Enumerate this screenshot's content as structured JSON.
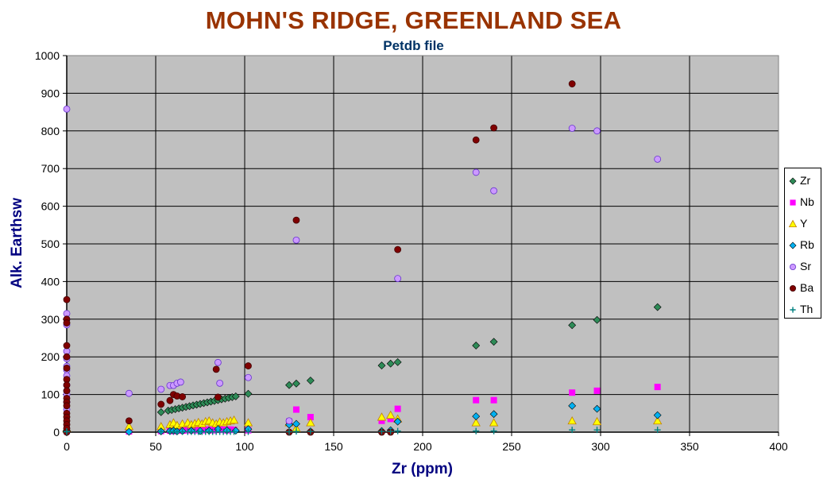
{
  "chart_data": {
    "type": "scatter",
    "title": "MOHN'S RIDGE,  GREENLAND SEA",
    "subtitle": "Petdb file",
    "xlabel": "Zr (ppm)",
    "ylabel": "Alk. Earthsw",
    "xlim": [
      0,
      400
    ],
    "ylim": [
      0,
      1000
    ],
    "xticks": [
      0,
      50,
      100,
      150,
      200,
      250,
      300,
      350,
      400
    ],
    "yticks": [
      0,
      100,
      200,
      300,
      400,
      500,
      600,
      700,
      800,
      900,
      1000
    ],
    "grid": true,
    "legend_position": "right",
    "series": [
      {
        "name": "Zr",
        "marker": "diamond",
        "color": "#2e8b57",
        "x": [
          53,
          57,
          59,
          61,
          63,
          65,
          67,
          69,
          71,
          73,
          75,
          77,
          79,
          81,
          83,
          85,
          87,
          89,
          91,
          93,
          95,
          102,
          125,
          129,
          137,
          177,
          182,
          186,
          230,
          240,
          284,
          298,
          332
        ],
        "y": [
          53,
          57,
          59,
          61,
          63,
          65,
          67,
          69,
          71,
          73,
          75,
          77,
          79,
          81,
          83,
          85,
          87,
          89,
          91,
          93,
          95,
          102,
          125,
          129,
          137,
          177,
          182,
          186,
          230,
          240,
          284,
          298,
          332
        ]
      },
      {
        "name": "Nb",
        "marker": "square",
        "color": "#ff00ff",
        "x": [
          0,
          0,
          0,
          35,
          53,
          58,
          60,
          62,
          65,
          68,
          70,
          72,
          74,
          76,
          78,
          80,
          82,
          84,
          86,
          88,
          90,
          92,
          94,
          102,
          125,
          129,
          137,
          177,
          182,
          186,
          230,
          240,
          284,
          298,
          332
        ],
        "y": [
          3,
          5,
          8,
          2,
          3,
          4,
          3,
          5,
          4,
          5,
          6,
          5,
          6,
          5,
          7,
          6,
          5,
          6,
          7,
          6,
          5,
          7,
          6,
          5,
          28,
          60,
          40,
          30,
          35,
          62,
          85,
          85,
          105,
          110,
          120
        ]
      },
      {
        "name": "Y",
        "marker": "triangle",
        "color": "#ffff00",
        "x": [
          0,
          35,
          53,
          58,
          60,
          62,
          65,
          68,
          70,
          72,
          74,
          76,
          78,
          80,
          82,
          84,
          86,
          88,
          90,
          92,
          94,
          102,
          125,
          129,
          137,
          177,
          182,
          186,
          230,
          240,
          284,
          298,
          332
        ],
        "y": [
          10,
          15,
          15,
          20,
          25,
          18,
          22,
          25,
          20,
          23,
          26,
          22,
          28,
          30,
          25,
          22,
          27,
          25,
          28,
          30,
          32,
          25,
          25,
          10,
          25,
          40,
          45,
          35,
          25,
          25,
          30,
          28,
          30
        ]
      },
      {
        "name": "Rb",
        "marker": "diamond",
        "color": "#00b0f0",
        "x": [
          0,
          0,
          35,
          53,
          58,
          60,
          62,
          65,
          70,
          75,
          80,
          85,
          90,
          95,
          102,
          125,
          129,
          137,
          177,
          182,
          186,
          230,
          240,
          284,
          298,
          332
        ],
        "y": [
          2,
          4,
          1,
          2,
          3,
          4,
          2,
          3,
          4,
          3,
          4,
          8,
          5,
          4,
          8,
          20,
          22,
          2,
          3,
          5,
          28,
          42,
          48,
          70,
          62,
          45
        ]
      },
      {
        "name": "Sr",
        "marker": "circle",
        "color": "#cc99ff",
        "x": [
          0,
          0,
          0,
          0,
          0,
          0,
          0,
          0,
          0,
          0,
          0,
          0,
          0,
          0,
          35,
          53,
          58,
          60,
          62,
          64,
          85,
          86,
          102,
          125,
          129,
          186,
          230,
          240,
          284,
          298,
          332
        ],
        "y": [
          858,
          315,
          300,
          285,
          215,
          195,
          175,
          165,
          150,
          125,
          110,
          100,
          80,
          60,
          103,
          114,
          124,
          124,
          130,
          133,
          185,
          130,
          145,
          30,
          510,
          408,
          690,
          641,
          807,
          800,
          725
        ]
      },
      {
        "name": "Ba",
        "marker": "circle",
        "color": "#800000",
        "x": [
          0,
          0,
          0,
          0,
          0,
          0,
          0,
          0,
          0,
          0,
          0,
          0,
          0,
          0,
          0,
          0,
          0,
          0,
          35,
          53,
          58,
          60,
          62,
          65,
          84,
          85,
          102,
          125,
          129,
          137,
          177,
          182,
          186,
          230,
          240,
          284
        ],
        "y": [
          352,
          300,
          290,
          230,
          200,
          170,
          140,
          125,
          110,
          90,
          80,
          70,
          50,
          40,
          30,
          20,
          10,
          0,
          30,
          74,
          84,
          100,
          96,
          94,
          167,
          93,
          176,
          0,
          563,
          0,
          0,
          0,
          485,
          776,
          808,
          925
        ]
      },
      {
        "name": "Th",
        "marker": "plus",
        "color": "#008080",
        "x": [
          0,
          0,
          53,
          58,
          60,
          62,
          65,
          68,
          70,
          72,
          74,
          76,
          78,
          80,
          82,
          84,
          86,
          88,
          90,
          92,
          94,
          102,
          125,
          129,
          137,
          177,
          182,
          186,
          230,
          240,
          284,
          298,
          332
        ],
        "y": [
          1,
          2,
          1,
          1,
          1,
          1,
          1,
          1,
          1,
          1,
          1,
          1,
          1,
          1,
          1,
          1,
          1,
          1,
          1,
          1,
          1,
          1,
          1,
          2,
          2,
          2,
          2,
          3,
          3,
          3,
          6,
          6,
          6
        ]
      }
    ]
  }
}
